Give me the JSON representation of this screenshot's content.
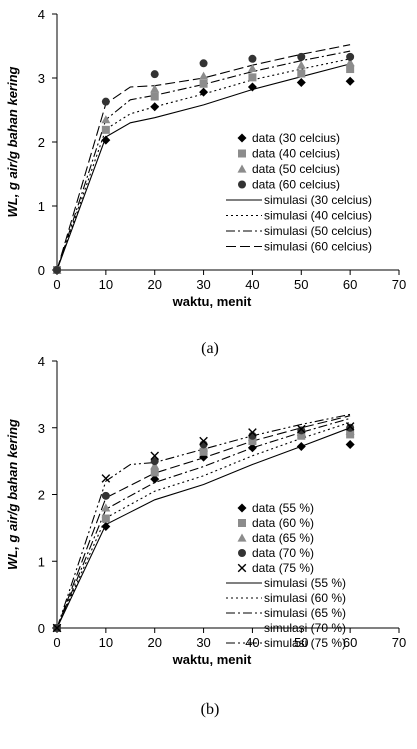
{
  "chart_data": [
    {
      "type": "scatter",
      "caption": "(a)",
      "xlabel": "waktu, menit",
      "ylabel": "WL, g air/g bahan kering",
      "xlim": [
        0,
        70
      ],
      "ylim": [
        0,
        4
      ],
      "xticks": [
        "0",
        "10",
        "20",
        "30",
        "40",
        "50",
        "60",
        "70"
      ],
      "yticks": [
        "0",
        "1",
        "2",
        "3",
        "4"
      ],
      "legend_position": "right-center",
      "series": [
        {
          "name": "data (30 celcius)",
          "kind": "points",
          "marker": "diamond",
          "color": "#000000",
          "x": [
            0,
            10,
            20,
            30,
            40,
            50,
            60
          ],
          "y": [
            0,
            2.03,
            2.55,
            2.78,
            2.86,
            2.93,
            2.95
          ]
        },
        {
          "name": "data (40 celcius)",
          "kind": "points",
          "marker": "square",
          "color": "#8c8c8c",
          "x": [
            0,
            10,
            20,
            30,
            40,
            50,
            60
          ],
          "y": [
            0,
            2.19,
            2.71,
            2.91,
            3.01,
            3.07,
            3.14
          ]
        },
        {
          "name": "data (50 celcius)",
          "kind": "points",
          "marker": "triangle",
          "color": "#8c8c8c",
          "x": [
            0,
            10,
            20,
            30,
            40,
            50,
            60
          ],
          "y": [
            0,
            2.35,
            2.83,
            3.03,
            3.15,
            3.2,
            3.24
          ]
        },
        {
          "name": "data (60 celcius)",
          "kind": "points",
          "marker": "circle",
          "color": "#333333",
          "x": [
            0,
            10,
            20,
            30,
            40,
            50,
            60
          ],
          "y": [
            0,
            2.63,
            3.06,
            3.23,
            3.3,
            3.33,
            3.33
          ]
        },
        {
          "name": "simulasi (30 celcius)",
          "kind": "line",
          "dash": "solid",
          "x": [
            0,
            10,
            15,
            20,
            30,
            40,
            50,
            60
          ],
          "y": [
            0,
            2.08,
            2.3,
            2.38,
            2.58,
            2.82,
            3.02,
            3.22
          ]
        },
        {
          "name": "simulasi (40 celcius)",
          "kind": "line",
          "dash": "dotted",
          "x": [
            0,
            10,
            15,
            20,
            30,
            40,
            50,
            60
          ],
          "y": [
            0,
            2.2,
            2.44,
            2.55,
            2.75,
            2.97,
            3.14,
            3.3
          ]
        },
        {
          "name": "simulasi (50 celcius)",
          "kind": "line",
          "dash": "dashdot",
          "x": [
            0,
            10,
            15,
            20,
            30,
            40,
            50,
            60
          ],
          "y": [
            0,
            2.35,
            2.66,
            2.73,
            2.9,
            3.1,
            3.27,
            3.42
          ]
        },
        {
          "name": "simulasi (60 celcius)",
          "kind": "line",
          "dash": "dashed",
          "x": [
            0,
            10,
            15,
            20,
            30,
            40,
            50,
            60
          ],
          "y": [
            0,
            2.6,
            2.86,
            2.88,
            3.0,
            3.2,
            3.37,
            3.52
          ]
        }
      ]
    },
    {
      "type": "scatter",
      "caption": "(b)",
      "xlabel": "waktu, menit",
      "ylabel": "WL, g air/g bahan kering",
      "xlim": [
        0,
        70
      ],
      "ylim": [
        0,
        4
      ],
      "xticks": [
        "0",
        "10",
        "20",
        "30",
        "40",
        "50",
        "60",
        "70"
      ],
      "yticks": [
        "0",
        "1",
        "2",
        "3",
        "4"
      ],
      "legend_position": "right-center",
      "series": [
        {
          "name": "data (55 %)",
          "kind": "points",
          "marker": "diamond",
          "color": "#000000",
          "x": [
            0,
            10,
            20,
            30,
            40,
            50,
            60
          ],
          "y": [
            0,
            1.52,
            2.23,
            2.56,
            2.7,
            2.72,
            2.75
          ]
        },
        {
          "name": "data (60 %)",
          "kind": "points",
          "marker": "square",
          "color": "#8c8c8c",
          "x": [
            0,
            10,
            20,
            30,
            40,
            50,
            60
          ],
          "y": [
            0,
            1.64,
            2.33,
            2.64,
            2.8,
            2.88,
            2.9
          ]
        },
        {
          "name": "data (65 %)",
          "kind": "points",
          "marker": "triangle",
          "color": "#8c8c8c",
          "x": [
            0,
            10,
            20,
            30,
            40,
            50,
            60
          ],
          "y": [
            0,
            1.8,
            2.43,
            2.7,
            2.86,
            2.93,
            2.95
          ]
        },
        {
          "name": "data (70 %)",
          "kind": "points",
          "marker": "circle",
          "color": "#333333",
          "x": [
            0,
            10,
            20,
            30,
            40,
            50,
            60
          ],
          "y": [
            0,
            1.98,
            2.5,
            2.75,
            2.88,
            2.96,
            3.0
          ]
        },
        {
          "name": "data (75 %)",
          "kind": "points",
          "marker": "x",
          "color": "#000000",
          "x": [
            0,
            10,
            20,
            30,
            40,
            50,
            60
          ],
          "y": [
            0,
            2.24,
            2.58,
            2.8,
            2.93,
            2.98,
            3.02
          ]
        },
        {
          "name": "simulasi (55 %)",
          "kind": "line",
          "dash": "solid",
          "x": [
            0,
            10,
            20,
            30,
            40,
            50,
            60
          ],
          "y": [
            0,
            1.55,
            1.92,
            2.15,
            2.45,
            2.72,
            3.0
          ]
        },
        {
          "name": "simulasi (60 %)",
          "kind": "line",
          "dash": "dotted",
          "x": [
            0,
            10,
            20,
            30,
            40,
            50,
            60
          ],
          "y": [
            0,
            1.65,
            2.05,
            2.28,
            2.58,
            2.84,
            3.08
          ]
        },
        {
          "name": "simulasi (65 %)",
          "kind": "line",
          "dash": "dashdot",
          "x": [
            0,
            10,
            20,
            30,
            40,
            50,
            60
          ],
          "y": [
            0,
            1.78,
            2.18,
            2.42,
            2.7,
            2.93,
            3.14
          ]
        },
        {
          "name": "simulasi (70 %)",
          "kind": "line",
          "dash": "dashed",
          "x": [
            0,
            10,
            20,
            30,
            40,
            50,
            60
          ],
          "y": [
            0,
            1.95,
            2.32,
            2.55,
            2.8,
            3.0,
            3.18
          ]
        },
        {
          "name": "simulasi (75 %)",
          "kind": "line",
          "dash": "dashdotdot",
          "x": [
            0,
            10,
            15,
            20,
            30,
            40,
            50,
            60
          ],
          "y": [
            0,
            2.2,
            2.45,
            2.48,
            2.68,
            2.88,
            3.05,
            3.2
          ]
        }
      ]
    }
  ]
}
